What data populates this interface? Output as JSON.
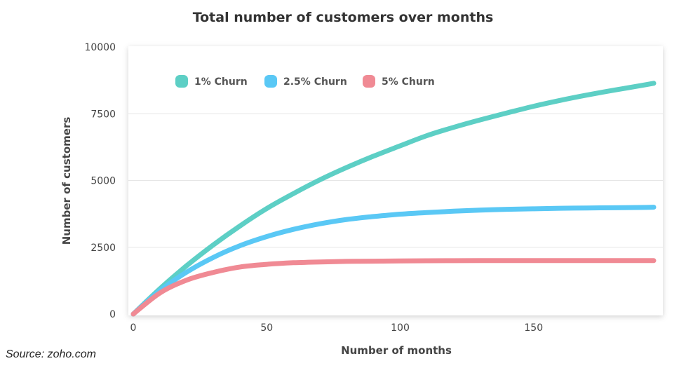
{
  "source": "Source: zoho.com",
  "chart_data": {
    "type": "line",
    "title": "Total number of customers over months",
    "xlabel": "Number of months",
    "ylabel": "Number of customers",
    "xlim": [
      0,
      195
    ],
    "ylim": [
      0,
      10000
    ],
    "x_ticks": [
      0,
      50,
      100,
      150
    ],
    "y_ticks": [
      0,
      2500,
      5000,
      7500,
      10000
    ],
    "grid": "horizontal",
    "legend_position": "top-left",
    "x": [
      0,
      10,
      20,
      30,
      40,
      50,
      60,
      70,
      80,
      90,
      100,
      110,
      120,
      130,
      140,
      150,
      160,
      170,
      180,
      190,
      195
    ],
    "series": [
      {
        "name": "1% Churn",
        "color": "#5dcfc5",
        "values": [
          0,
          950,
          1810,
          2590,
          3300,
          3950,
          4510,
          5030,
          5490,
          5910,
          6300,
          6680,
          6990,
          7270,
          7530,
          7780,
          8000,
          8200,
          8380,
          8550,
          8640
        ]
      },
      {
        "name": "2.5% Churn",
        "color": "#5ac8f5",
        "values": [
          0,
          880,
          1570,
          2120,
          2560,
          2900,
          3170,
          3380,
          3540,
          3650,
          3740,
          3800,
          3850,
          3890,
          3920,
          3940,
          3960,
          3970,
          3980,
          3990,
          4000
        ]
      },
      {
        "name": "5% Churn",
        "color": "#f08a94",
        "values": [
          0,
          790,
          1270,
          1560,
          1760,
          1860,
          1920,
          1950,
          1970,
          1980,
          1990,
          1995,
          1998,
          1999,
          2000,
          2000,
          2000,
          2000,
          2000,
          2000,
          2000
        ]
      }
    ]
  }
}
